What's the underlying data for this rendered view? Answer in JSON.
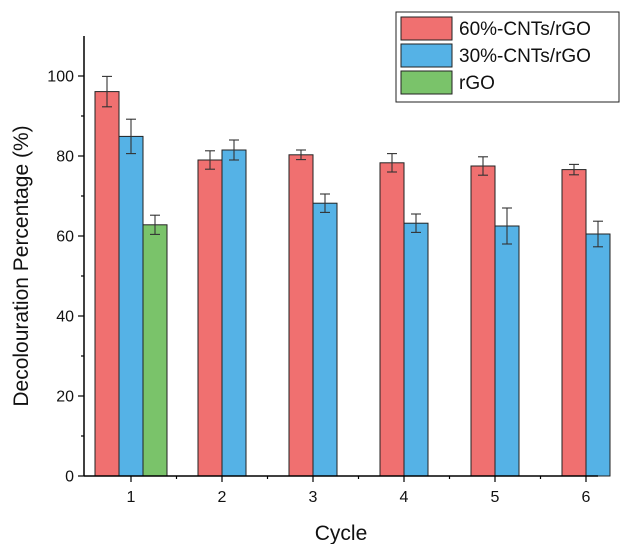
{
  "chart_data": {
    "type": "bar",
    "xlabel": "Cycle",
    "ylabel": "Decolouration Percentage (%)",
    "categories": [
      "1",
      "2",
      "3",
      "4",
      "5",
      "6"
    ],
    "ylim": [
      0,
      110
    ],
    "yticks": [
      "0",
      "20",
      "40",
      "60",
      "80",
      "100"
    ],
    "legend_position": "top-right",
    "series": [
      {
        "name": "60%-CNTs/rGO",
        "color": "#f07070",
        "values": [
          96.1,
          79.0,
          80.3,
          78.3,
          77.5,
          76.6
        ],
        "errors": [
          3.8,
          2.3,
          1.2,
          2.3,
          2.3,
          1.3
        ]
      },
      {
        "name": "30%-CNTs/rGO",
        "color": "#55b2e6",
        "values": [
          84.9,
          81.5,
          68.2,
          63.2,
          62.5,
          60.5
        ],
        "errors": [
          4.3,
          2.5,
          2.3,
          2.3,
          4.5,
          3.2
        ]
      },
      {
        "name": "rGO",
        "color": "#7ac36a",
        "values": [
          62.8,
          null,
          null,
          null,
          null,
          null
        ],
        "errors": [
          2.4,
          null,
          null,
          null,
          null,
          null
        ]
      }
    ]
  }
}
